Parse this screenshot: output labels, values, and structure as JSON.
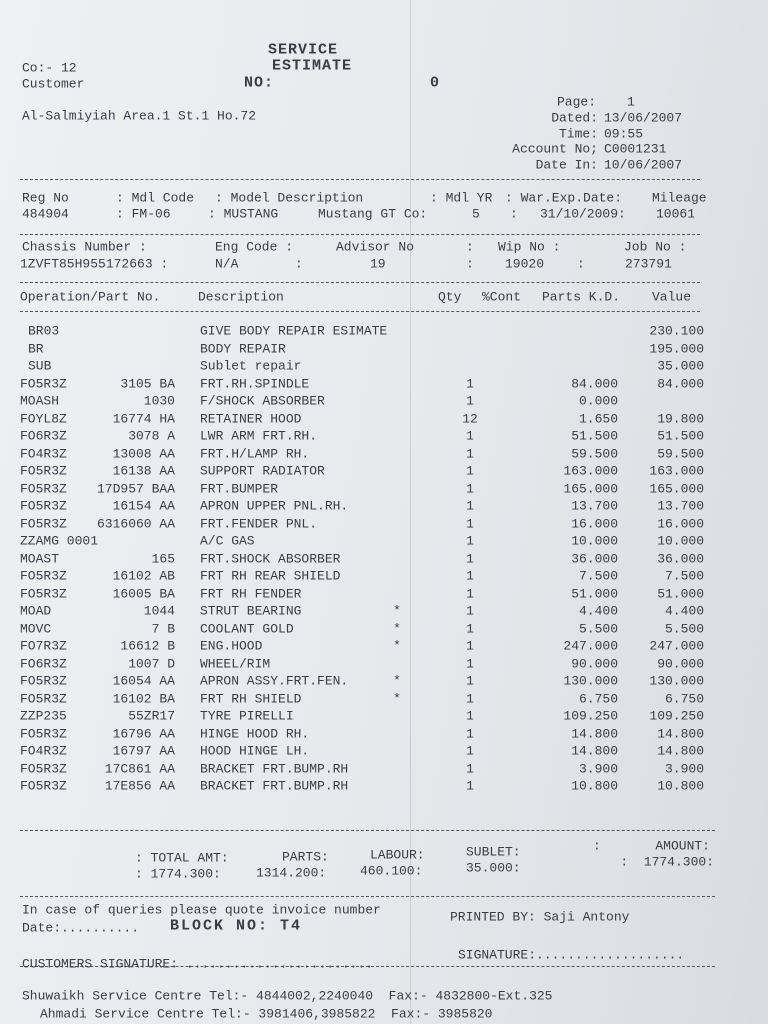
{
  "header": {
    "company": "Co:- 12",
    "customer_label": "Customer",
    "address": "Al-Salmiyiah Area.1 St.1 Ho.72",
    "title_line1": "SERVICE",
    "title_line2": "ESTIMATE",
    "number_label": "NO:",
    "number": "0",
    "page_label": "Page:",
    "page": "1",
    "dated_label": "Dated:",
    "dated": "13/06/2007",
    "time_label": "Time:",
    "time": "09:55",
    "account_label": "Account No;",
    "account": "C0001231",
    "date_in_label": "Date In:",
    "date_in": "10/06/2007"
  },
  "vehicle": {
    "labels": [
      "Reg No",
      ": Mdl Code",
      ": Model Description",
      ": Mdl YR",
      ": War.Exp.Date:",
      "Mileage"
    ],
    "values": [
      "484904",
      ": FM-06",
      ": MUSTANG",
      "Mustang GT Co:",
      "5",
      ":",
      "31/10/2009:",
      "10061"
    ]
  },
  "job": {
    "labels": [
      "Chassis Number :",
      "Eng Code :",
      "Advisor No",
      ":",
      "Wip No :",
      "Job No :"
    ],
    "values": [
      "1ZVFT85H955172663 :",
      "N/A",
      ":",
      "19",
      ":",
      "19020",
      ":",
      "273791"
    ]
  },
  "table": {
    "columns": [
      "Operation/Part No.",
      "Description",
      "Qty",
      "%Cont",
      "Parts K.D.",
      "Value"
    ],
    "rows": [
      {
        "op": "BR03",
        "desc": "GIVE BODY REPAIR ESIMATE",
        "value": "230.100"
      },
      {
        "op": "BR",
        "desc": "BODY REPAIR",
        "value": "195.000"
      },
      {
        "op": "SUB",
        "desc": "Sublet repair",
        "value": "35.000"
      },
      {
        "op": "FO5R3Z",
        "part": "3105 BA",
        "desc": "FRT.RH.SPINDLE",
        "qty": "1",
        "parts": "84.000",
        "value": "84.000"
      },
      {
        "op": "MOASH",
        "part": "1030",
        "desc": "F/SHOCK ABSORBER",
        "qty": "1",
        "parts": "0.000"
      },
      {
        "op": "FOYL8Z",
        "part": "16774 HA",
        "desc": "RETAINER HOOD",
        "qty": "12",
        "parts": "1.650",
        "value": "19.800"
      },
      {
        "op": "FO6R3Z",
        "part": "3078 A",
        "desc": "LWR ARM FRT.RH.",
        "qty": "1",
        "parts": "51.500",
        "value": "51.500"
      },
      {
        "op": "FO4R3Z",
        "part": "13008 AA",
        "desc": "FRT.H/LAMP RH.",
        "qty": "1",
        "parts": "59.500",
        "value": "59.500"
      },
      {
        "op": "FO5R3Z",
        "part": "16138 AA",
        "desc": "SUPPORT RADIATOR",
        "qty": "1",
        "parts": "163.000",
        "value": "163.000"
      },
      {
        "op": "FO5R3Z",
        "part": "17D957 BAA",
        "desc": "FRT.BUMPER",
        "qty": "1",
        "parts": "165.000",
        "value": "165.000"
      },
      {
        "op": "FO5R3Z",
        "part": "16154 AA",
        "desc": "APRON UPPER PNL.RH.",
        "qty": "1",
        "parts": "13.700",
        "value": "13.700"
      },
      {
        "op": "FO5R3Z",
        "part": "6316060 AA",
        "desc": "FRT.FENDER PNL.",
        "qty": "1",
        "parts": "16.000",
        "value": "16.000"
      },
      {
        "op": "ZZAMG 0001",
        "desc": "A/C GAS",
        "qty": "1",
        "parts": "10.000",
        "value": "10.000"
      },
      {
        "op": "MOAST",
        "part": "165",
        "desc": "FRT.SHOCK ABSORBER",
        "qty": "1",
        "parts": "36.000",
        "value": "36.000"
      },
      {
        "op": "FO5R3Z",
        "part": "16102 AB",
        "desc": "FRT RH REAR SHIELD",
        "qty": "1",
        "parts": "7.500",
        "value": "7.500"
      },
      {
        "op": "FO5R3Z",
        "part": "16005 BA",
        "desc": "FRT RH FENDER",
        "qty": "1",
        "parts": "51.000",
        "value": "51.000"
      },
      {
        "op": "MOAD",
        "part": "1044",
        "desc": "STRUT BEARING",
        "flag": "*",
        "qty": "1",
        "parts": "4.400",
        "value": "4.400"
      },
      {
        "op": "MOVC",
        "part": "7 B",
        "desc": "COOLANT GOLD",
        "flag": "*",
        "qty": "1",
        "parts": "5.500",
        "value": "5.500"
      },
      {
        "op": "FO7R3Z",
        "part": "16612 B",
        "desc": "ENG.HOOD",
        "flag": "*",
        "qty": "1",
        "parts": "247.000",
        "value": "247.000"
      },
      {
        "op": "FO6R3Z",
        "part": "1007 D",
        "desc": "WHEEL/RIM",
        "qty": "1",
        "parts": "90.000",
        "value": "90.000"
      },
      {
        "op": "FO5R3Z",
        "part": "16054 AA",
        "desc": "APRON ASSY.FRT.FEN.",
        "flag": "*",
        "qty": "1",
        "parts": "130.000",
        "value": "130.000"
      },
      {
        "op": "FO5R3Z",
        "part": "16102 BA",
        "desc": "FRT RH SHIELD",
        "flag": "*",
        "qty": "1",
        "parts": "6.750",
        "value": "6.750"
      },
      {
        "op": "ZZP235",
        "part": "55ZR17",
        "desc": "TYRE PIRELLI",
        "qty": "1",
        "parts": "109.250",
        "value": "109.250"
      },
      {
        "op": "FO5R3Z",
        "part": "16796 AA",
        "desc": "HINGE HOOD RH.",
        "qty": "1",
        "parts": "14.800",
        "value": "14.800"
      },
      {
        "op": "FO4R3Z",
        "part": "16797 AA",
        "desc": "HOOD HINGE LH.",
        "qty": "1",
        "parts": "14.800",
        "value": "14.800"
      },
      {
        "op": "FO5R3Z",
        "part": "17C861 AA",
        "desc": "BRACKET FRT.BUMP.RH",
        "qty": "1",
        "parts": "3.900",
        "value": "3.900"
      },
      {
        "op": "FO5R3Z",
        "part": "17E856 AA",
        "desc": "BRACKET FRT.BUMP.RH",
        "qty": "1",
        "parts": "10.800",
        "value": "10.800"
      }
    ]
  },
  "totals": {
    "total_label": ": TOTAL AMT:",
    "total": ": 1774.300:",
    "parts_label": "PARTS:",
    "parts": "1314.200:",
    "labour_label": "LABOUR:",
    "labour": "460.100:",
    "sublet_label": "SUBLET:",
    "sublet": "35.000:",
    "amount_label": ":       AMOUNT:",
    "amount": ":  1774.300:"
  },
  "footer": {
    "queries": "In case of queries please quote invoice number",
    "date": "Date:..........",
    "block": "BLOCK NO: T4",
    "printed_by": "PRINTED BY: Saji Antony",
    "signature": "SIGNATURE:...................",
    "customer_signature": "CUSTOMERS SIGNATURE: ........................",
    "branch1": "Shuwaikh Service Centre Tel:- 4844002,2240040  Fax:- 4832800-Ext.325",
    "branch2": "Ahmadi Service Centre Tel:- 3981406,3985822  Fax:- 3985820"
  }
}
